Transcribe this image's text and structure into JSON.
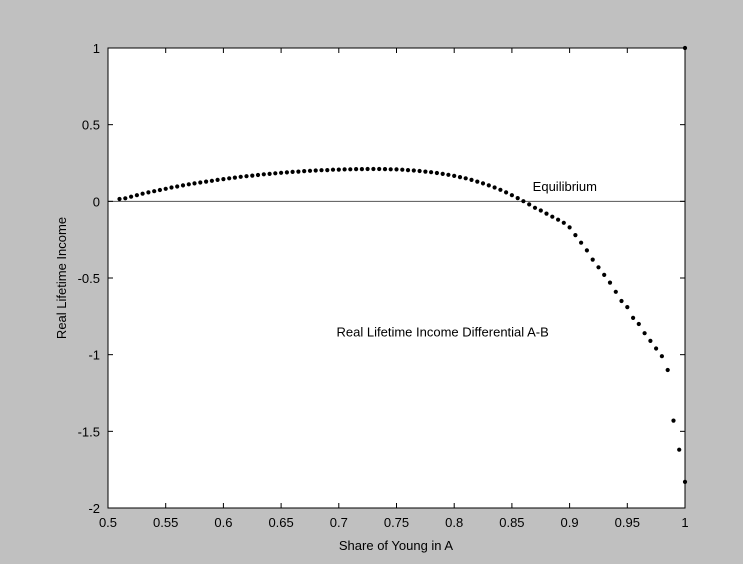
{
  "chart_data": {
    "type": "scatter",
    "title": "",
    "xlabel": "Share of Young in A",
    "ylabel": "Real Lifetime Income",
    "xlim": [
      0.5,
      1
    ],
    "ylim": [
      -2,
      1
    ],
    "xticks": [
      "0.5",
      "0.55",
      "0.6",
      "0.65",
      "0.7",
      "0.75",
      "0.8",
      "0.85",
      "0.9",
      "0.95",
      "1"
    ],
    "yticks": [
      "-2",
      "-1.5",
      "-1",
      "-0.5",
      "0",
      "0.5",
      "1"
    ],
    "grid": false,
    "legend": "none",
    "colors": {
      "figure_bg": "#c0c0c0",
      "axes_bg": "#ffffff",
      "marker": "#000000",
      "reference_line": "#555555"
    },
    "reference_line": {
      "y": 0
    },
    "annotations": [
      {
        "text": "Equilibrium",
        "x": 0.868,
        "y": 0.1
      },
      {
        "text": "Real Lifetime Income Differential A-B",
        "x": 0.79,
        "y": -0.85
      }
    ],
    "series": [
      {
        "points": [
          [
            0.51,
            0.015
          ],
          [
            0.515,
            0.02
          ],
          [
            0.52,
            0.03
          ],
          [
            0.525,
            0.04
          ],
          [
            0.53,
            0.05
          ],
          [
            0.535,
            0.058
          ],
          [
            0.54,
            0.066
          ],
          [
            0.545,
            0.074
          ],
          [
            0.55,
            0.082
          ],
          [
            0.555,
            0.09
          ],
          [
            0.56,
            0.097
          ],
          [
            0.565,
            0.104
          ],
          [
            0.57,
            0.111
          ],
          [
            0.575,
            0.117
          ],
          [
            0.58,
            0.123
          ],
          [
            0.585,
            0.129
          ],
          [
            0.59,
            0.134
          ],
          [
            0.595,
            0.14
          ],
          [
            0.6,
            0.145
          ],
          [
            0.605,
            0.15
          ],
          [
            0.61,
            0.155
          ],
          [
            0.615,
            0.16
          ],
          [
            0.62,
            0.164
          ],
          [
            0.625,
            0.168
          ],
          [
            0.63,
            0.172
          ],
          [
            0.635,
            0.176
          ],
          [
            0.64,
            0.179
          ],
          [
            0.645,
            0.183
          ],
          [
            0.65,
            0.186
          ],
          [
            0.655,
            0.189
          ],
          [
            0.66,
            0.192
          ],
          [
            0.665,
            0.194
          ],
          [
            0.67,
            0.197
          ],
          [
            0.675,
            0.199
          ],
          [
            0.68,
            0.201
          ],
          [
            0.685,
            0.203
          ],
          [
            0.69,
            0.204
          ],
          [
            0.695,
            0.206
          ],
          [
            0.7,
            0.207
          ],
          [
            0.705,
            0.208
          ],
          [
            0.71,
            0.209
          ],
          [
            0.715,
            0.21
          ],
          [
            0.72,
            0.21
          ],
          [
            0.725,
            0.211
          ],
          [
            0.73,
            0.211
          ],
          [
            0.735,
            0.211
          ],
          [
            0.74,
            0.21
          ],
          [
            0.745,
            0.209
          ],
          [
            0.75,
            0.208
          ],
          [
            0.755,
            0.206
          ],
          [
            0.76,
            0.204
          ],
          [
            0.765,
            0.201
          ],
          [
            0.77,
            0.198
          ],
          [
            0.775,
            0.194
          ],
          [
            0.78,
            0.19
          ],
          [
            0.785,
            0.185
          ],
          [
            0.79,
            0.179
          ],
          [
            0.795,
            0.173
          ],
          [
            0.8,
            0.166
          ],
          [
            0.805,
            0.158
          ],
          [
            0.81,
            0.15
          ],
          [
            0.815,
            0.14
          ],
          [
            0.82,
            0.129
          ],
          [
            0.825,
            0.117
          ],
          [
            0.83,
            0.104
          ],
          [
            0.835,
            0.09
          ],
          [
            0.84,
            0.075
          ],
          [
            0.845,
            0.058
          ],
          [
            0.85,
            0.04
          ],
          [
            0.855,
            0.021
          ],
          [
            0.86,
            0.001
          ],
          [
            0.865,
            -0.02
          ],
          [
            0.87,
            -0.042
          ],
          [
            0.875,
            -0.06
          ],
          [
            0.88,
            -0.08
          ],
          [
            0.885,
            -0.1
          ],
          [
            0.89,
            -0.12
          ],
          [
            0.895,
            -0.14
          ],
          [
            0.9,
            -0.17
          ],
          [
            0.905,
            -0.22
          ],
          [
            0.91,
            -0.27
          ],
          [
            0.915,
            -0.32
          ],
          [
            0.92,
            -0.38
          ],
          [
            0.925,
            -0.43
          ],
          [
            0.93,
            -0.48
          ],
          [
            0.935,
            -0.53
          ],
          [
            0.94,
            -0.59
          ],
          [
            0.945,
            -0.65
          ],
          [
            0.95,
            -0.69
          ],
          [
            0.955,
            -0.76
          ],
          [
            0.96,
            -0.8
          ],
          [
            0.965,
            -0.86
          ],
          [
            0.97,
            -0.91
          ],
          [
            0.975,
            -0.96
          ],
          [
            0.98,
            -1.01
          ],
          [
            0.985,
            -1.1
          ],
          [
            0.99,
            -1.43
          ],
          [
            0.995,
            -1.62
          ],
          [
            1.0,
            -1.83
          ],
          [
            1.0,
            1.0
          ]
        ]
      }
    ]
  }
}
